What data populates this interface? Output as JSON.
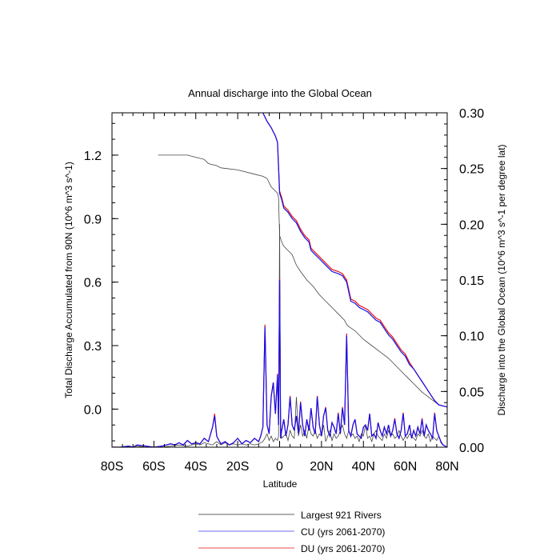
{
  "chart_data": {
    "type": "line",
    "title": "Annual discharge into the Global Ocean",
    "xlabel": "Latitude",
    "ylabel_left": "Total Discharge Accumulated from 90N (10^6 m^3 s^-1)",
    "ylabel_right": "Discharge into the Global Ocean (10^6 m^3 s^-1 per degree lat)",
    "xlim": [
      -80,
      80
    ],
    "ylim_left": [
      -0.18,
      1.4
    ],
    "ylim_right": [
      0,
      0.3
    ],
    "x_ticks": [
      {
        "value": -80,
        "label": "80S"
      },
      {
        "value": -60,
        "label": "60S"
      },
      {
        "value": -40,
        "label": "40S"
      },
      {
        "value": -20,
        "label": "20S"
      },
      {
        "value": 0,
        "label": "0"
      },
      {
        "value": 20,
        "label": "20N"
      },
      {
        "value": 40,
        "label": "40N"
      },
      {
        "value": 60,
        "label": "60N"
      },
      {
        "value": 80,
        "label": "80N"
      }
    ],
    "y_left_ticks": [
      {
        "value": 0.0,
        "label": "0.0"
      },
      {
        "value": 0.3,
        "label": "0.3"
      },
      {
        "value": 0.6,
        "label": "0.6"
      },
      {
        "value": 0.9,
        "label": "0.9"
      },
      {
        "value": 1.2,
        "label": "1.2"
      }
    ],
    "y_right_ticks": [
      {
        "value": 0.0,
        "label": "0.00"
      },
      {
        "value": 0.05,
        "label": "0.05"
      },
      {
        "value": 0.1,
        "label": "0.10"
      },
      {
        "value": 0.15,
        "label": "0.15"
      },
      {
        "value": 0.2,
        "label": "0.20"
      },
      {
        "value": 0.25,
        "label": "0.25"
      },
      {
        "value": 0.3,
        "label": "0.30"
      }
    ],
    "colors": {
      "rivers": "#444444",
      "cu": "#1010ee",
      "du": "#ee1010"
    },
    "legend": [
      {
        "label": "Largest 921 Rivers",
        "color": "#808080"
      },
      {
        "label": "CU (yrs 2061-2070)",
        "color": "#8a8af5"
      },
      {
        "label": "DU (yrs 2061-2070)",
        "color": "#f07070"
      }
    ],
    "series": [
      {
        "name": "Largest 921 Rivers accumulated (left axis)",
        "axis": "left",
        "x": [
          -58,
          -44,
          -40,
          -36,
          -34,
          -30,
          -28,
          -20,
          -12,
          -8,
          -6,
          -4,
          -1,
          -0.5,
          0,
          1,
          2,
          4,
          6,
          8,
          10,
          13,
          16,
          19,
          22,
          25,
          28,
          31,
          32,
          33,
          36,
          40,
          44,
          48,
          52,
          56,
          60,
          64,
          68,
          72,
          76,
          80
        ],
        "y": [
          1.2,
          1.2,
          1.19,
          1.18,
          1.16,
          1.15,
          1.14,
          1.13,
          1.11,
          1.1,
          1.09,
          1.05,
          1.02,
          1.0,
          0.82,
          0.79,
          0.77,
          0.75,
          0.73,
          0.68,
          0.65,
          0.61,
          0.58,
          0.54,
          0.51,
          0.48,
          0.45,
          0.42,
          0.4,
          0.39,
          0.37,
          0.33,
          0.3,
          0.27,
          0.24,
          0.2,
          0.16,
          0.12,
          0.08,
          0.05,
          0.02,
          0.01
        ]
      },
      {
        "name": "CU accumulated (left axis)",
        "axis": "left",
        "x": [
          -8,
          -6,
          -4,
          -2,
          -1,
          0,
          1,
          2,
          4,
          6,
          8,
          10,
          12,
          14,
          15,
          17,
          19,
          21,
          23,
          25,
          28,
          30,
          32,
          34,
          36,
          38,
          40,
          42,
          44,
          46,
          48,
          50,
          52,
          54,
          56,
          58,
          60,
          62,
          64,
          66,
          68,
          70,
          72,
          74,
          76,
          78,
          80
        ],
        "y": [
          1.4,
          1.36,
          1.33,
          1.29,
          1.26,
          1.02,
          0.99,
          0.95,
          0.93,
          0.9,
          0.88,
          0.84,
          0.81,
          0.79,
          0.75,
          0.73,
          0.71,
          0.69,
          0.67,
          0.65,
          0.64,
          0.63,
          0.6,
          0.51,
          0.5,
          0.48,
          0.47,
          0.46,
          0.44,
          0.42,
          0.41,
          0.38,
          0.35,
          0.33,
          0.3,
          0.27,
          0.25,
          0.21,
          0.19,
          0.16,
          0.13,
          0.1,
          0.07,
          0.04,
          0.02,
          0.015,
          0.01
        ]
      },
      {
        "name": "DU accumulated (left axis)",
        "axis": "left",
        "x": [
          -8,
          -6,
          -4,
          -2,
          -1,
          0,
          1,
          2,
          4,
          6,
          8,
          10,
          12,
          14,
          15,
          17,
          19,
          21,
          23,
          25,
          28,
          30,
          32,
          34,
          36,
          38,
          40,
          42,
          44,
          46,
          48,
          50,
          52,
          54,
          56,
          58,
          60,
          62,
          64,
          66,
          68,
          70,
          72,
          74,
          76,
          78,
          80
        ],
        "y": [
          1.4,
          1.36,
          1.33,
          1.29,
          1.26,
          1.03,
          1.0,
          0.96,
          0.94,
          0.91,
          0.89,
          0.85,
          0.82,
          0.8,
          0.76,
          0.74,
          0.72,
          0.7,
          0.68,
          0.66,
          0.65,
          0.64,
          0.61,
          0.52,
          0.51,
          0.49,
          0.48,
          0.47,
          0.45,
          0.43,
          0.42,
          0.39,
          0.36,
          0.34,
          0.31,
          0.28,
          0.26,
          0.22,
          0.19,
          0.16,
          0.13,
          0.1,
          0.07,
          0.04,
          0.02,
          0.015,
          0.01
        ]
      },
      {
        "name": "Largest 921 Rivers per degree latitude (right axis)",
        "axis": "right",
        "x": [
          -80,
          -72,
          -68,
          -64,
          -60,
          -56,
          -52,
          -48,
          -44,
          -40,
          -38,
          -36,
          -34,
          -32,
          -30,
          -28,
          -26,
          -24,
          -22,
          -20,
          -18,
          -16,
          -14,
          -12,
          -10,
          -8,
          -7,
          -6,
          -5,
          -4,
          -3,
          -2,
          -1,
          -0.5,
          0,
          0.5,
          1,
          2,
          3,
          4,
          5,
          6,
          7,
          8,
          9,
          10,
          11,
          12,
          13,
          14,
          15,
          16,
          17,
          18,
          19,
          20,
          21,
          22,
          23,
          24,
          25,
          26,
          27,
          28,
          29,
          30,
          31,
          32,
          33,
          34,
          35,
          36,
          37,
          38,
          39,
          40,
          41,
          42,
          43,
          44,
          45,
          46,
          47,
          48,
          49,
          50,
          51,
          52,
          53,
          54,
          55,
          56,
          57,
          58,
          59,
          60,
          61,
          62,
          63,
          64,
          65,
          66,
          67,
          68,
          69,
          70,
          71,
          72,
          73,
          74,
          75,
          76,
          77,
          78,
          79,
          80
        ],
        "y": [
          0.0,
          0.0,
          0.001,
          0.0,
          0.0,
          0.0,
          0.001,
          0.002,
          0.001,
          0.003,
          0.002,
          0.004,
          0.003,
          0.002,
          0.005,
          0.002,
          0.004,
          0.002,
          0.003,
          0.002,
          0.003,
          0.002,
          0.003,
          0.002,
          0.003,
          0.005,
          0.008,
          0.012,
          0.006,
          0.01,
          0.005,
          0.008,
          0.006,
          0.01,
          0.2,
          0.02,
          0.008,
          0.01,
          0.012,
          0.006,
          0.015,
          0.01,
          0.008,
          0.045,
          0.01,
          0.02,
          0.01,
          0.015,
          0.008,
          0.02,
          0.012,
          0.01,
          0.015,
          0.008,
          0.012,
          0.01,
          0.02,
          0.005,
          0.01,
          0.015,
          0.006,
          0.012,
          0.008,
          0.01,
          0.015,
          0.02,
          0.012,
          0.008,
          0.015,
          0.01,
          0.012,
          0.008,
          0.01,
          0.005,
          0.012,
          0.01,
          0.02,
          0.008,
          0.01,
          0.005,
          0.012,
          0.015,
          0.01,
          0.008,
          0.006,
          0.012,
          0.008,
          0.015,
          0.01,
          0.012,
          0.008,
          0.01,
          0.015,
          0.01,
          0.006,
          0.01,
          0.008,
          0.012,
          0.01,
          0.008,
          0.006,
          0.012,
          0.01,
          0.015,
          0.01,
          0.008,
          0.012,
          0.005,
          0.01,
          0.008,
          0.006,
          0.01,
          0.004,
          0.002,
          0.001,
          0.0
        ]
      },
      {
        "name": "CU per degree latitude (right axis)",
        "axis": "right",
        "x": [
          -80,
          -76,
          -72,
          -70,
          -68,
          -64,
          -60,
          -56,
          -52,
          -50,
          -48,
          -46,
          -44,
          -42,
          -40,
          -38,
          -36,
          -34,
          -32,
          -31,
          -30,
          -29,
          -28,
          -26,
          -24,
          -22,
          -20,
          -18,
          -16,
          -14,
          -12,
          -10,
          -9,
          -8,
          -7,
          -6,
          -5,
          -4,
          -3,
          -2,
          -1,
          -0.5,
          0,
          0.5,
          1,
          2,
          3,
          4,
          5,
          6,
          7,
          8,
          9,
          10,
          11,
          12,
          13,
          14,
          15,
          16,
          17,
          18,
          19,
          20,
          21,
          22,
          23,
          24,
          25,
          26,
          27,
          28,
          29,
          30,
          31,
          32,
          33,
          34,
          35,
          36,
          37,
          38,
          39,
          40,
          41,
          42,
          43,
          44,
          45,
          46,
          47,
          48,
          49,
          50,
          51,
          52,
          53,
          54,
          55,
          56,
          57,
          58,
          59,
          60,
          61,
          62,
          63,
          64,
          65,
          66,
          67,
          68,
          69,
          70,
          71,
          72,
          73,
          74,
          75,
          76,
          77,
          78,
          79,
          80
        ],
        "y": [
          0.0,
          0.0,
          0.001,
          0.0,
          0.002,
          0.001,
          0.0,
          0.001,
          0.003,
          0.002,
          0.004,
          0.002,
          0.006,
          0.003,
          0.004,
          0.003,
          0.008,
          0.005,
          0.018,
          0.028,
          0.01,
          0.006,
          0.003,
          0.005,
          0.002,
          0.004,
          0.008,
          0.003,
          0.006,
          0.004,
          0.008,
          0.005,
          0.01,
          0.018,
          0.108,
          0.02,
          0.012,
          0.045,
          0.058,
          0.03,
          0.065,
          0.02,
          0.15,
          0.008,
          0.015,
          0.025,
          0.01,
          0.02,
          0.045,
          0.02,
          0.015,
          0.028,
          0.012,
          0.04,
          0.02,
          0.01,
          0.025,
          0.015,
          0.035,
          0.018,
          0.012,
          0.045,
          0.02,
          0.01,
          0.028,
          0.035,
          0.015,
          0.01,
          0.022,
          0.018,
          0.012,
          0.03,
          0.012,
          0.035,
          0.02,
          0.1,
          0.015,
          0.01,
          0.02,
          0.025,
          0.012,
          0.01,
          0.008,
          0.018,
          0.02,
          0.015,
          0.03,
          0.01,
          0.012,
          0.008,
          0.022,
          0.015,
          0.01,
          0.018,
          0.012,
          0.02,
          0.01,
          0.015,
          0.025,
          0.012,
          0.008,
          0.015,
          0.03,
          0.01,
          0.012,
          0.02,
          0.008,
          0.015,
          0.01,
          0.018,
          0.012,
          0.025,
          0.01,
          0.02,
          0.015,
          0.012,
          0.008,
          0.03,
          0.015,
          0.01,
          0.005,
          0.002,
          0.001,
          0.0
        ]
      },
      {
        "name": "DU per degree latitude (right axis)",
        "axis": "right",
        "x": [
          -80,
          -76,
          -72,
          -70,
          -68,
          -64,
          -60,
          -56,
          -52,
          -50,
          -48,
          -46,
          -44,
          -42,
          -40,
          -38,
          -36,
          -34,
          -32,
          -31,
          -30,
          -29,
          -28,
          -26,
          -24,
          -22,
          -20,
          -18,
          -16,
          -14,
          -12,
          -10,
          -9,
          -8,
          -7,
          -6,
          -5,
          -4,
          -3,
          -2,
          -1,
          -0.5,
          0,
          0.5,
          1,
          2,
          3,
          4,
          5,
          6,
          7,
          8,
          9,
          10,
          11,
          12,
          13,
          14,
          15,
          16,
          17,
          18,
          19,
          20,
          21,
          22,
          23,
          24,
          25,
          26,
          27,
          28,
          29,
          30,
          31,
          32,
          33,
          34,
          35,
          36,
          37,
          38,
          39,
          40,
          41,
          42,
          43,
          44,
          45,
          46,
          47,
          48,
          49,
          50,
          51,
          52,
          53,
          54,
          55,
          56,
          57,
          58,
          59,
          60,
          61,
          62,
          63,
          64,
          65,
          66,
          67,
          68,
          69,
          70,
          71,
          72,
          73,
          74,
          75,
          76,
          77,
          78,
          79,
          80
        ],
        "y": [
          0.0,
          0.0,
          0.001,
          0.0,
          0.002,
          0.001,
          0.0,
          0.001,
          0.003,
          0.002,
          0.004,
          0.002,
          0.006,
          0.003,
          0.004,
          0.003,
          0.008,
          0.005,
          0.018,
          0.03,
          0.01,
          0.006,
          0.003,
          0.005,
          0.002,
          0.004,
          0.008,
          0.003,
          0.006,
          0.004,
          0.008,
          0.005,
          0.01,
          0.018,
          0.11,
          0.02,
          0.012,
          0.046,
          0.058,
          0.03,
          0.066,
          0.02,
          0.151,
          0.008,
          0.015,
          0.025,
          0.01,
          0.02,
          0.046,
          0.02,
          0.015,
          0.028,
          0.012,
          0.041,
          0.02,
          0.01,
          0.025,
          0.015,
          0.035,
          0.018,
          0.012,
          0.046,
          0.02,
          0.01,
          0.028,
          0.036,
          0.015,
          0.01,
          0.022,
          0.018,
          0.012,
          0.031,
          0.012,
          0.036,
          0.02,
          0.102,
          0.015,
          0.01,
          0.02,
          0.025,
          0.012,
          0.01,
          0.008,
          0.018,
          0.02,
          0.015,
          0.03,
          0.01,
          0.012,
          0.008,
          0.022,
          0.015,
          0.01,
          0.018,
          0.012,
          0.02,
          0.01,
          0.015,
          0.026,
          0.012,
          0.008,
          0.015,
          0.031,
          0.01,
          0.012,
          0.02,
          0.008,
          0.015,
          0.01,
          0.018,
          0.012,
          0.026,
          0.01,
          0.02,
          0.015,
          0.012,
          0.008,
          0.031,
          0.015,
          0.01,
          0.005,
          0.002,
          0.001,
          0.0
        ]
      }
    ]
  }
}
